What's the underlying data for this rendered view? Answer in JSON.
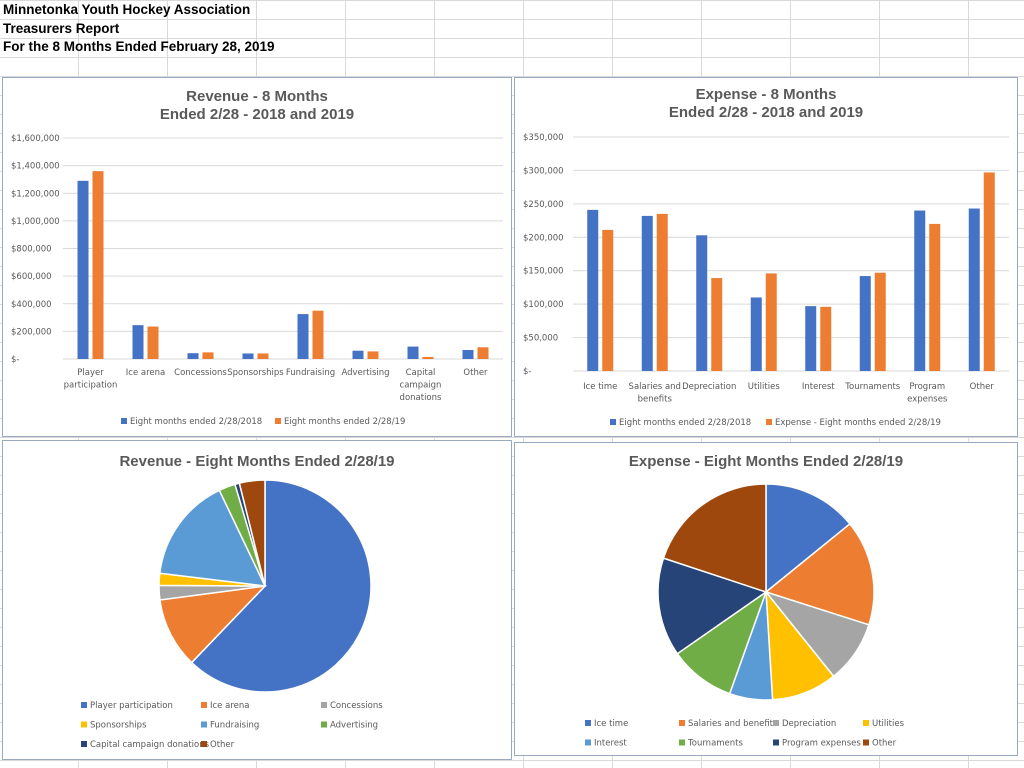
{
  "header": {
    "line1": "Minnetonka Youth Hockey Association",
    "line2": "Treasurers Report",
    "line3": "For the 8 Months Ended February 28, 2019"
  },
  "colors": {
    "blue": "#4472c4",
    "orange": "#ed7d31",
    "gray": "#a5a5a5",
    "gold": "#ffc000",
    "lightblue": "#5b9bd5",
    "green": "#70ad47",
    "navy": "#264478",
    "brown": "#9e480e"
  },
  "chart_data": [
    {
      "id": "revenue-bar",
      "type": "bar",
      "title_lines": [
        "Revenue - 8 Months",
        "Ended 2/28 - 2018 and 2019"
      ],
      "categories": [
        [
          "Player",
          "participation"
        ],
        [
          "Ice arena"
        ],
        [
          "Concessions"
        ],
        [
          "Sponsorships"
        ],
        [
          "Fundraising"
        ],
        [
          "Advertising"
        ],
        [
          "Capital",
          "campaign",
          "donations"
        ],
        [
          "Other"
        ]
      ],
      "series": [
        {
          "name": "Eight months ended 2/28/2018",
          "color": "#4472c4",
          "values": [
            1290000,
            245000,
            42000,
            40000,
            325000,
            60000,
            90000,
            65000
          ]
        },
        {
          "name": "Eight months ended 2/28/19",
          "color": "#ed7d31",
          "values": [
            1360000,
            235000,
            48000,
            40000,
            350000,
            55000,
            15000,
            85000
          ]
        }
      ],
      "ylim": [
        0,
        1600000
      ],
      "yticks": [
        0,
        200000,
        400000,
        600000,
        800000,
        1000000,
        1200000,
        1400000,
        1600000
      ],
      "ytick_labels": [
        "$-",
        "$200,000",
        "$400,000",
        "$600,000",
        "$800,000",
        "$1,000,000",
        "$1,200,000",
        "$1,400,000",
        "$1,600,000"
      ]
    },
    {
      "id": "expense-bar",
      "type": "bar",
      "title_lines": [
        "Expense - 8 Months",
        "Ended 2/28 - 2018 and 2019"
      ],
      "categories": [
        [
          "Ice time"
        ],
        [
          "Salaries and",
          "benefits"
        ],
        [
          "Depreciation"
        ],
        [
          "Utilities"
        ],
        [
          "Interest"
        ],
        [
          "Tournaments"
        ],
        [
          "Program",
          "expenses"
        ],
        [
          "Other"
        ]
      ],
      "series": [
        {
          "name": "Eight months ended 2/28/2018",
          "color": "#4472c4",
          "values": [
            241000,
            232000,
            203000,
            110000,
            97000,
            142000,
            240000,
            243000
          ]
        },
        {
          "name": "Expense - Eight months ended 2/28/19",
          "color": "#ed7d31",
          "values": [
            211000,
            235000,
            139000,
            146000,
            96000,
            147000,
            220000,
            297000
          ]
        }
      ],
      "ylim": [
        0,
        350000
      ],
      "yticks": [
        0,
        50000,
        100000,
        150000,
        200000,
        250000,
        300000,
        350000
      ],
      "ytick_labels": [
        "$-",
        "$50,000",
        "$100,000",
        "$150,000",
        "$200,000",
        "$250,000",
        "$300,000",
        "$350,000"
      ]
    },
    {
      "id": "revenue-pie",
      "type": "pie",
      "title": "Revenue - Eight Months Ended 2/28/19",
      "labels": [
        "Player participation",
        "Ice arena",
        "Concessions",
        "Sponsorships",
        "Fundraising",
        "Advertising",
        "Capital campaign donations",
        "Other"
      ],
      "values": [
        1360000,
        235000,
        48000,
        40000,
        350000,
        55000,
        15000,
        85000
      ],
      "colors": [
        "#4472c4",
        "#ed7d31",
        "#a5a5a5",
        "#ffc000",
        "#5b9bd5",
        "#70ad47",
        "#264478",
        "#9e480e"
      ]
    },
    {
      "id": "expense-pie",
      "type": "pie",
      "title": "Expense - Eight Months Ended 2/28/19",
      "labels": [
        "Ice time",
        "Salaries and benefits",
        "Depreciation",
        "Utilities",
        "Interest",
        "Tournaments",
        "Program expenses",
        "Other"
      ],
      "values": [
        211000,
        235000,
        139000,
        146000,
        96000,
        147000,
        220000,
        297000
      ],
      "colors": [
        "#4472c4",
        "#ed7d31",
        "#a5a5a5",
        "#ffc000",
        "#5b9bd5",
        "#70ad47",
        "#264478",
        "#9e480e"
      ]
    }
  ]
}
